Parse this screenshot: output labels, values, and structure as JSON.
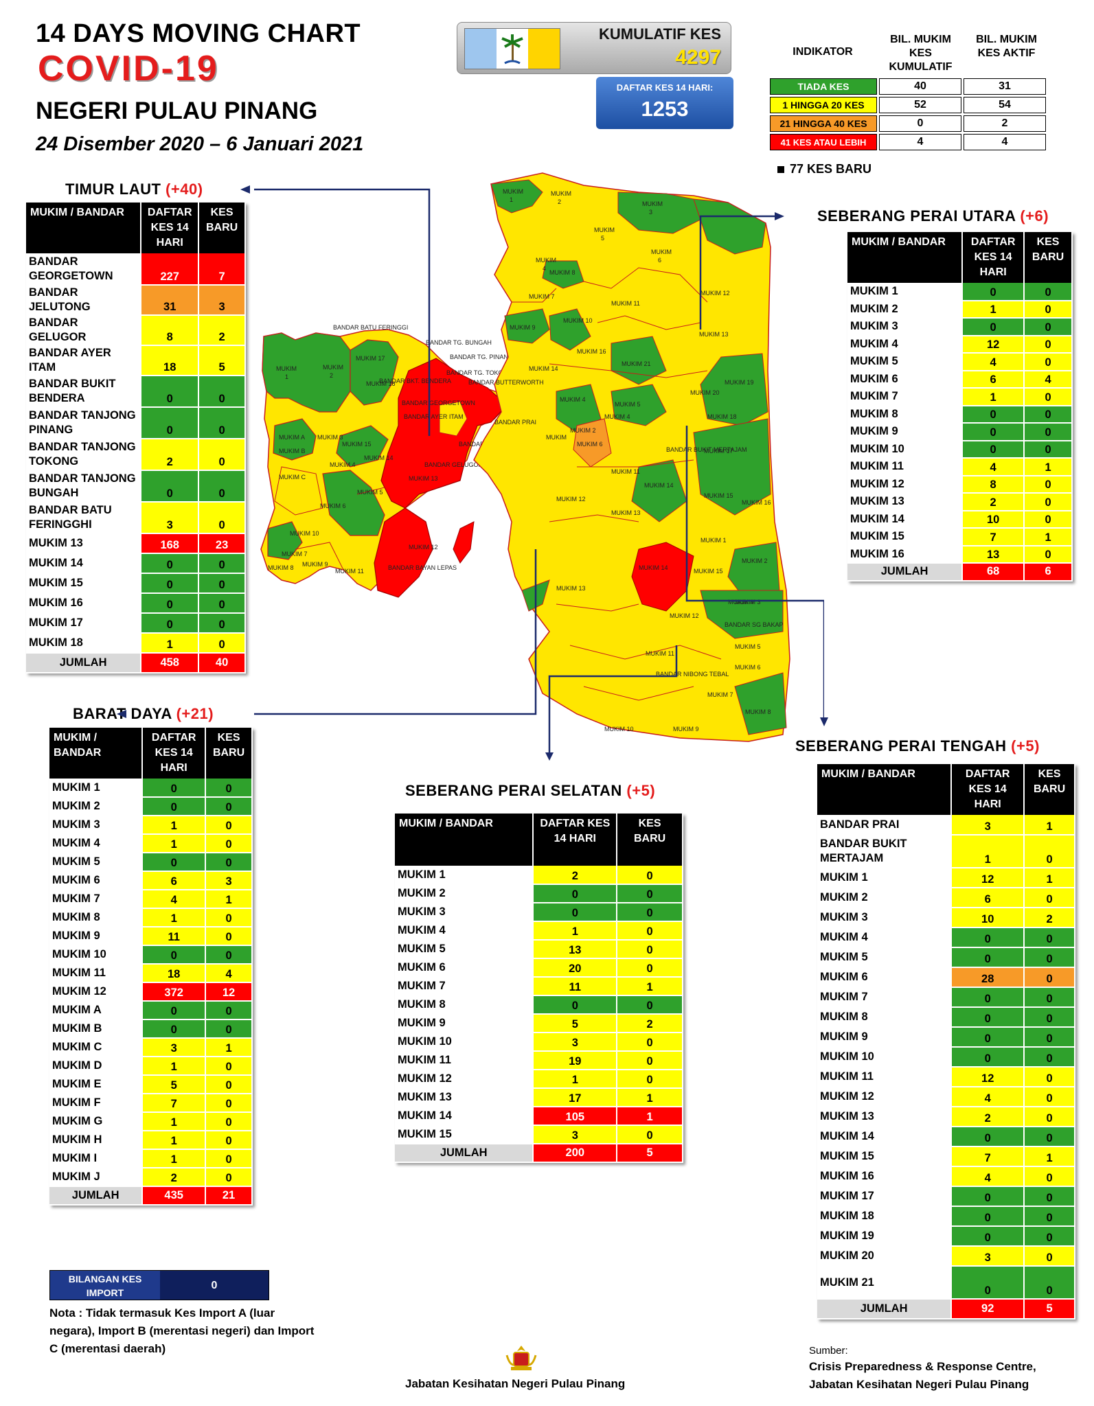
{
  "header": {
    "line1": "14  DAYS MOVING CHART",
    "line2": "COVID-19",
    "line3": "NEGERI PULAU PINANG",
    "dates": "24 Disember 2020 – 6 Januari 2021"
  },
  "kumulatif": {
    "label": "KUMULATIF KES",
    "value": "4297"
  },
  "daftar": {
    "label": "DAFTAR KES 14 HARI:",
    "value": "1253"
  },
  "indikator": {
    "col0": "INDIKATOR",
    "col1": "BIL. MUKIM KES KUMULATIF",
    "col2": "BIL. MUKIM KES AKTIF",
    "rows": [
      {
        "label": "TIADA KES",
        "kum": "40",
        "aktif": "31",
        "color": "#2fa12c"
      },
      {
        "label": "1 HINGGA 20 KES",
        "kum": "52",
        "aktif": "54",
        "color": "#ffff00"
      },
      {
        "label": "21 HINGGA 40 KES",
        "kum": "0",
        "aktif": "2",
        "color": "#f79a28"
      },
      {
        "label": "41 KES ATAU LEBIH",
        "kum": "4",
        "aktif": "4",
        "color": "#ff0000"
      }
    ],
    "baru": "77 KES BARU"
  },
  "timur_laut": {
    "name": "TIMUR LAUT",
    "plus": "(+40)",
    "h1": "MUKIM / BANDAR",
    "h2": "DAFTAR KES 14 HARI",
    "h3": "KES BARU",
    "rows": [
      [
        "BANDAR GEORGETOWN",
        "227",
        "7",
        "r",
        "r"
      ],
      [
        "BANDAR JELUTONG",
        "31",
        "3",
        "o",
        "o"
      ],
      [
        "BANDAR GELUGOR",
        "8",
        "2",
        "y",
        "y"
      ],
      [
        "BANDAR AYER ITAM",
        "18",
        "5",
        "y",
        "y"
      ],
      [
        "BANDAR BUKIT BENDERA",
        "0",
        "0",
        "g",
        "g"
      ],
      [
        "BANDAR TANJONG PINANG",
        "0",
        "0",
        "g",
        "g"
      ],
      [
        "BANDAR TANJONG TOKONG",
        "2",
        "0",
        "y",
        "y"
      ],
      [
        "BANDAR TANJONG BUNGAH",
        "0",
        "0",
        "g",
        "g"
      ],
      [
        "BANDAR BATU FERINGGHI",
        "3",
        "0",
        "y",
        "y"
      ],
      [
        "MUKIM 13",
        "168",
        "23",
        "r",
        "r"
      ],
      [
        "MUKIM 14",
        "0",
        "0",
        "g",
        "g"
      ],
      [
        "MUKIM 15",
        "0",
        "0",
        "g",
        "g"
      ],
      [
        "MUKIM 16",
        "0",
        "0",
        "g",
        "g"
      ],
      [
        "MUKIM 17",
        "0",
        "0",
        "g",
        "g"
      ],
      [
        "MUKIM 18",
        "1",
        "0",
        "y",
        "y"
      ]
    ],
    "total": [
      "JUMLAH",
      "458",
      "40"
    ]
  },
  "barat_daya": {
    "name": "BARAT DAYA",
    "plus": "(+21)",
    "h1": "MUKIM / BANDAR",
    "h2": "DAFTAR KES 14 HARI",
    "h3": "KES BARU",
    "rows": [
      [
        "MUKIM 1",
        "0",
        "0",
        "g",
        "g"
      ],
      [
        "MUKIM 2",
        "0",
        "0",
        "g",
        "g"
      ],
      [
        "MUKIM 3",
        "1",
        "0",
        "y",
        "y"
      ],
      [
        "MUKIM 4",
        "1",
        "0",
        "y",
        "y"
      ],
      [
        "MUKIM 5",
        "0",
        "0",
        "g",
        "g"
      ],
      [
        "MUKIM 6",
        "6",
        "3",
        "y",
        "y"
      ],
      [
        "MUKIM 7",
        "4",
        "1",
        "y",
        "y"
      ],
      [
        "MUKIM 8",
        "1",
        "0",
        "y",
        "y"
      ],
      [
        "MUKIM 9",
        "11",
        "0",
        "y",
        "y"
      ],
      [
        "MUKIM 10",
        "0",
        "0",
        "g",
        "g"
      ],
      [
        "MUKIM 11",
        "18",
        "4",
        "y",
        "y"
      ],
      [
        "MUKIM 12",
        "372",
        "12",
        "r",
        "r"
      ],
      [
        "MUKIM A",
        "0",
        "0",
        "g",
        "g"
      ],
      [
        "MUKIM B",
        "0",
        "0",
        "g",
        "g"
      ],
      [
        "MUKIM C",
        "3",
        "1",
        "y",
        "y"
      ],
      [
        "MUKIM D",
        "1",
        "0",
        "y",
        "y"
      ],
      [
        "MUKIM E",
        "5",
        "0",
        "y",
        "y"
      ],
      [
        "MUKIM F",
        "7",
        "0",
        "y",
        "y"
      ],
      [
        "MUKIM G",
        "1",
        "0",
        "y",
        "y"
      ],
      [
        "MUKIM H",
        "1",
        "0",
        "y",
        "y"
      ],
      [
        "MUKIM I",
        "1",
        "0",
        "y",
        "y"
      ],
      [
        "MUKIM J",
        "2",
        "0",
        "y",
        "y"
      ]
    ],
    "total": [
      "JUMLAH",
      "435",
      "21"
    ]
  },
  "spu": {
    "name": "SEBERANG PERAI UTARA",
    "plus": "(+6)",
    "h1": "MUKIM / BANDAR",
    "h2": "DAFTAR KES 14 HARI",
    "h3": "KES BARU",
    "rows": [
      [
        "MUKIM 1",
        "0",
        "0",
        "g",
        "g"
      ],
      [
        "MUKIM 2",
        "1",
        "0",
        "y",
        "y"
      ],
      [
        "MUKIM 3",
        "0",
        "0",
        "g",
        "g"
      ],
      [
        "MUKIM 4",
        "12",
        "0",
        "y",
        "y"
      ],
      [
        "MUKIM 5",
        "4",
        "0",
        "y",
        "y"
      ],
      [
        "MUKIM 6",
        "6",
        "4",
        "y",
        "y"
      ],
      [
        "MUKIM 7",
        "1",
        "0",
        "y",
        "y"
      ],
      [
        "MUKIM 8",
        "0",
        "0",
        "g",
        "g"
      ],
      [
        "MUKIM 9",
        "0",
        "0",
        "g",
        "g"
      ],
      [
        "MUKIM 10",
        "0",
        "0",
        "g",
        "g"
      ],
      [
        "MUKIM 11",
        "4",
        "1",
        "y",
        "y"
      ],
      [
        "MUKIM 12",
        "8",
        "0",
        "y",
        "y"
      ],
      [
        "MUKIM 13",
        "2",
        "0",
        "y",
        "y"
      ],
      [
        "MUKIM 14",
        "10",
        "0",
        "y",
        "y"
      ],
      [
        "MUKIM 15",
        "7",
        "1",
        "y",
        "y"
      ],
      [
        "MUKIM 16",
        "13",
        "0",
        "y",
        "y"
      ]
    ],
    "total": [
      "JUMLAH",
      "68",
      "6"
    ]
  },
  "sps": {
    "name": "SEBERANG PERAI SELATAN",
    "plus": "(+5)",
    "h1": "MUKIM / BANDAR",
    "h2": "DAFTAR KES 14 HARI",
    "h3": "KES BARU",
    "rows": [
      [
        "MUKIM 1",
        "2",
        "0",
        "y",
        "y"
      ],
      [
        "MUKIM 2",
        "0",
        "0",
        "g",
        "g"
      ],
      [
        "MUKIM 3",
        "0",
        "0",
        "g",
        "g"
      ],
      [
        "MUKIM 4",
        "1",
        "0",
        "y",
        "y"
      ],
      [
        "MUKIM 5",
        "13",
        "0",
        "y",
        "y"
      ],
      [
        "MUKIM 6",
        "20",
        "0",
        "y",
        "y"
      ],
      [
        "MUKIM 7",
        "11",
        "1",
        "y",
        "y"
      ],
      [
        "MUKIM 8",
        "0",
        "0",
        "g",
        "g"
      ],
      [
        "MUKIM 9",
        "5",
        "2",
        "y",
        "y"
      ],
      [
        "MUKIM 10",
        "3",
        "0",
        "y",
        "y"
      ],
      [
        "MUKIM 11",
        "19",
        "0",
        "y",
        "y"
      ],
      [
        "MUKIM 12",
        "1",
        "0",
        "y",
        "y"
      ],
      [
        "MUKIM 13",
        "17",
        "1",
        "y",
        "y"
      ],
      [
        "MUKIM 14",
        "105",
        "1",
        "r",
        "r"
      ],
      [
        "MUKIM 15",
        "3",
        "0",
        "y",
        "y"
      ]
    ],
    "total": [
      "JUMLAH",
      "200",
      "5"
    ]
  },
  "spt": {
    "name": "SEBERANG PERAI TENGAH",
    "plus": "(+5)",
    "h1": "MUKIM / BANDAR",
    "h2": "DAFTAR KES 14 HARI",
    "h3": "KES BARU",
    "rows": [
      [
        "BANDAR PRAI",
        "3",
        "1",
        "y",
        "y"
      ],
      [
        "BANDAR BUKIT MERTAJAM",
        "1",
        "0",
        "y",
        "y"
      ],
      [
        "MUKIM 1",
        "12",
        "1",
        "y",
        "y"
      ],
      [
        "MUKIM 2",
        "6",
        "0",
        "y",
        "y"
      ],
      [
        "MUKIM 3",
        "10",
        "2",
        "y",
        "y"
      ],
      [
        "MUKIM 4",
        "0",
        "0",
        "g",
        "g"
      ],
      [
        "MUKIM 5",
        "0",
        "0",
        "g",
        "g"
      ],
      [
        "MUKIM 6",
        "28",
        "0",
        "o",
        "o"
      ],
      [
        "MUKIM 7",
        "0",
        "0",
        "g",
        "g"
      ],
      [
        "MUKIM 8",
        "0",
        "0",
        "g",
        "g"
      ],
      [
        "MUKIM 9",
        "0",
        "0",
        "g",
        "g"
      ],
      [
        "MUKIM 10",
        "0",
        "0",
        "g",
        "g"
      ],
      [
        "MUKIM 11",
        "12",
        "0",
        "y",
        "y"
      ],
      [
        "MUKIM 12",
        "4",
        "0",
        "y",
        "y"
      ],
      [
        "MUKIM 13",
        "2",
        "0",
        "y",
        "y"
      ],
      [
        "MUKIM 14",
        "0",
        "0",
        "g",
        "g"
      ],
      [
        "MUKIM 15",
        "7",
        "1",
        "y",
        "y"
      ],
      [
        "MUKIM 16",
        "4",
        "0",
        "y",
        "y"
      ],
      [
        "MUKIM 17",
        "0",
        "0",
        "g",
        "g"
      ],
      [
        "MUKIM 18",
        "0",
        "0",
        "g",
        "g"
      ],
      [
        "MUKIM 19",
        "0",
        "0",
        "g",
        "g"
      ],
      [
        "MUKIM 20",
        "3",
        "0",
        "y",
        "y"
      ],
      [
        "MUKIM 21",
        "0",
        "0",
        "g",
        "g"
      ]
    ],
    "total": [
      "JUMLAH",
      "92",
      "5"
    ]
  },
  "import": {
    "label": "BILANGAN KES IMPORT",
    "value": "0"
  },
  "nota": "Nota : Tidak termasuk Kes Import A (luar negara), Import B (merentasi negeri) dan Import C (merentasi daerah)",
  "footer": {
    "center": "Jabatan Kesihatan Negeri Pulau Pinang",
    "sumber": "Sumber:",
    "source1": "Crisis Preparedness & Response Centre,",
    "source2": "Jabatan Kesihatan Negeri Pulau Pinang"
  },
  "map": {
    "labels": {
      "batu_feringgi": "BANDAR BATU FERINGGI",
      "tg_bungah": "BANDAR TG. BUNGAH",
      "tg_pinang": "BANDAR TG. PINANG",
      "tg_tokong": "BANDAR TG.  TOKONG",
      "georgetown": "BANDAR GEORGETOWN",
      "ayer_itam": "BANDAR AYER ITAM",
      "jelutong": "BANDAR JELUTONG",
      "gelugor": "BANDAR GELUGOR",
      "bkt_bendera": "BANDAR BKT. BENDERA",
      "butterworth": "BANDAR BUTTERWORTH",
      "prai": "BANDAR PRAI",
      "bukit_mertajam": "BANDAR BUKIT MERTAJAM",
      "sg_bakap": "BANDAR SG BAKAP",
      "nibong_tebal": "BANDAR NIBONG TEBAL",
      "bayan_lepas": "BANDAR BAYAN LEPAS"
    }
  }
}
